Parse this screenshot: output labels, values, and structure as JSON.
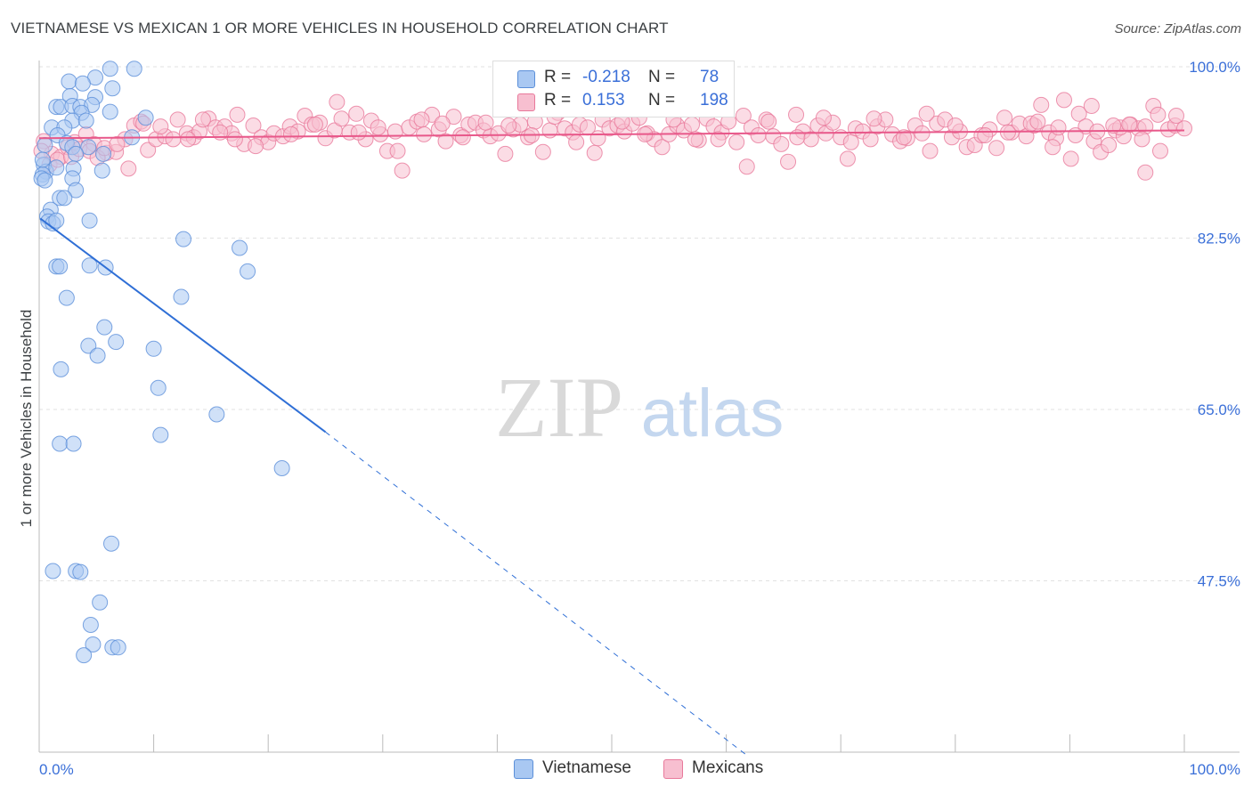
{
  "title": "VIETNAMESE VS MEXICAN 1 OR MORE VEHICLES IN HOUSEHOLD CORRELATION CHART",
  "source": "Source: ZipAtlas.com",
  "watermark": {
    "zip": "ZIP",
    "atlas": "atlas"
  },
  "legend": {
    "series": [
      {
        "name": "Vietnamese",
        "r_label": "R =",
        "r_value": "-0.218",
        "n_label": "N =",
        "n_value": "78",
        "fill": "#a9c8f2",
        "stroke": "#5b8fd9"
      },
      {
        "name": "Mexicans",
        "r_label": "R =",
        "r_value": "0.153",
        "n_label": "N =",
        "n_value": "198",
        "fill": "#f7bfd0",
        "stroke": "#e8799b"
      }
    ]
  },
  "chart_data": {
    "type": "scatter",
    "title": "VIETNAMESE VS MEXICAN 1 OR MORE VEHICLES IN HOUSEHOLD CORRELATION CHART",
    "xlabel": "",
    "ylabel": "1 or more Vehicles in Household",
    "xlim": [
      0,
      100
    ],
    "ylim": [
      30,
      100
    ],
    "x_tick_labels": [
      "0.0%",
      "100.0%"
    ],
    "y_ticks": [
      47.5,
      65.0,
      82.5,
      100.0
    ],
    "y_tick_labels": [
      "47.5%",
      "65.0%",
      "82.5%",
      "100.0%"
    ],
    "grid": true,
    "series": [
      {
        "name": "Vietnamese",
        "color_fill": "#a9c8f2",
        "color_stroke": "#5b8fd9",
        "trend": {
          "x0": 0.1,
          "y0": 84.5,
          "x1": 25.0,
          "y1": 62.7,
          "dash_to_x": 62.0,
          "dash_to_y": 29.5
        },
        "points": [
          [
            6.2,
            99.8
          ],
          [
            8.3,
            99.8
          ],
          [
            4.9,
            98.9
          ],
          [
            2.6,
            98.5
          ],
          [
            3.8,
            98.3
          ],
          [
            6.4,
            97.8
          ],
          [
            2.7,
            97.0
          ],
          [
            4.9,
            96.9
          ],
          [
            1.5,
            95.9
          ],
          [
            1.9,
            95.9
          ],
          [
            2.9,
            96.0
          ],
          [
            3.6,
            95.9
          ],
          [
            4.6,
            96.1
          ],
          [
            3.7,
            95.3
          ],
          [
            6.2,
            95.4
          ],
          [
            9.3,
            94.8
          ],
          [
            2.9,
            94.5
          ],
          [
            4.1,
            94.5
          ],
          [
            1.1,
            93.8
          ],
          [
            2.2,
            93.8
          ],
          [
            1.6,
            93.0
          ],
          [
            2.4,
            92.2
          ],
          [
            0.5,
            92.0
          ],
          [
            8.1,
            92.8
          ],
          [
            2.9,
            91.8
          ],
          [
            4.3,
            91.8
          ],
          [
            3.2,
            91.1
          ],
          [
            5.6,
            91.1
          ],
          [
            0.4,
            90.0
          ],
          [
            0.6,
            89.3
          ],
          [
            0.3,
            89.0
          ],
          [
            1.5,
            89.7
          ],
          [
            3.0,
            89.6
          ],
          [
            0.2,
            88.6
          ],
          [
            0.5,
            88.4
          ],
          [
            2.9,
            88.6
          ],
          [
            5.5,
            89.4
          ],
          [
            3.2,
            87.4
          ],
          [
            1.8,
            86.6
          ],
          [
            2.2,
            86.6
          ],
          [
            1.0,
            85.4
          ],
          [
            0.7,
            84.7
          ],
          [
            0.8,
            84.2
          ],
          [
            1.2,
            84.0
          ],
          [
            1.5,
            84.3
          ],
          [
            4.4,
            84.3
          ],
          [
            12.6,
            82.4
          ],
          [
            17.5,
            81.5
          ],
          [
            1.5,
            79.6
          ],
          [
            1.8,
            79.6
          ],
          [
            4.4,
            79.7
          ],
          [
            5.8,
            79.5
          ],
          [
            18.2,
            79.1
          ],
          [
            2.4,
            76.4
          ],
          [
            12.4,
            76.5
          ],
          [
            5.7,
            73.4
          ],
          [
            6.7,
            71.9
          ],
          [
            4.3,
            71.5
          ],
          [
            10.0,
            71.2
          ],
          [
            5.1,
            70.5
          ],
          [
            1.9,
            69.1
          ],
          [
            10.4,
            67.2
          ],
          [
            15.5,
            64.5
          ],
          [
            10.6,
            62.4
          ],
          [
            1.8,
            61.5
          ],
          [
            3.0,
            61.5
          ],
          [
            21.2,
            59.0
          ],
          [
            6.3,
            51.3
          ],
          [
            1.2,
            48.5
          ],
          [
            3.2,
            48.5
          ],
          [
            3.6,
            48.4
          ],
          [
            5.3,
            45.3
          ],
          [
            4.5,
            43.0
          ],
          [
            4.7,
            41.0
          ],
          [
            6.4,
            40.7
          ],
          [
            6.9,
            40.7
          ],
          [
            3.9,
            39.9
          ],
          [
            0.3,
            90.5
          ]
        ]
      },
      {
        "name": "Mexicans",
        "color_fill": "#f7bfd0",
        "color_stroke": "#e8799b",
        "trend": {
          "x0": 0.0,
          "y0": 92.7,
          "x1": 100.0,
          "y1": 93.5
        },
        "points": [
          [
            0.4,
            92.4
          ],
          [
            1.1,
            91.1
          ],
          [
            1.9,
            90.8
          ],
          [
            2.5,
            91.8
          ],
          [
            3.1,
            92.3
          ],
          [
            4.1,
            93.1
          ],
          [
            4.8,
            92.1
          ],
          [
            5.9,
            91.2
          ],
          [
            6.7,
            91.3
          ],
          [
            7.5,
            92.6
          ],
          [
            8.3,
            94.0
          ],
          [
            8.9,
            94.4
          ],
          [
            9.5,
            91.5
          ],
          [
            10.2,
            92.6
          ],
          [
            11.0,
            92.9
          ],
          [
            11.7,
            92.6
          ],
          [
            12.1,
            94.6
          ],
          [
            12.9,
            93.2
          ],
          [
            13.5,
            92.8
          ],
          [
            14.0,
            93.4
          ],
          [
            14.8,
            94.7
          ],
          [
            15.4,
            93.8
          ],
          [
            16.2,
            93.9
          ],
          [
            16.8,
            93.2
          ],
          [
            17.3,
            95.1
          ],
          [
            17.9,
            92.1
          ],
          [
            18.7,
            94.0
          ],
          [
            19.4,
            92.8
          ],
          [
            20.0,
            92.3
          ],
          [
            20.5,
            93.2
          ],
          [
            21.3,
            92.9
          ],
          [
            21.9,
            93.9
          ],
          [
            22.6,
            93.4
          ],
          [
            23.2,
            95.0
          ],
          [
            23.8,
            94.1
          ],
          [
            24.5,
            94.3
          ],
          [
            25.0,
            92.7
          ],
          [
            25.8,
            93.5
          ],
          [
            26.4,
            94.7
          ],
          [
            27.1,
            93.3
          ],
          [
            27.7,
            95.2
          ],
          [
            28.5,
            92.6
          ],
          [
            29.0,
            94.5
          ],
          [
            29.8,
            93.1
          ],
          [
            30.4,
            91.4
          ],
          [
            31.1,
            93.4
          ],
          [
            31.7,
            89.4
          ],
          [
            32.3,
            93.8
          ],
          [
            33.0,
            94.4
          ],
          [
            33.6,
            93.1
          ],
          [
            34.3,
            95.1
          ],
          [
            34.9,
            93.6
          ],
          [
            35.5,
            92.4
          ],
          [
            36.2,
            94.9
          ],
          [
            36.8,
            93.0
          ],
          [
            37.5,
            94.1
          ],
          [
            38.1,
            94.3
          ],
          [
            38.8,
            93.5
          ],
          [
            39.4,
            92.9
          ],
          [
            40.1,
            93.2
          ],
          [
            40.7,
            91.1
          ],
          [
            41.4,
            93.6
          ],
          [
            42.0,
            94.1
          ],
          [
            42.7,
            92.8
          ],
          [
            43.3,
            94.4
          ],
          [
            44.0,
            91.3
          ],
          [
            44.6,
            93.5
          ],
          [
            45.3,
            95.3
          ],
          [
            45.9,
            93.7
          ],
          [
            46.6,
            93.3
          ],
          [
            47.2,
            94.1
          ],
          [
            47.9,
            93.8
          ],
          [
            48.5,
            91.2
          ],
          [
            49.2,
            94.6
          ],
          [
            49.8,
            93.7
          ],
          [
            50.5,
            94.0
          ],
          [
            51.1,
            93.4
          ],
          [
            51.8,
            94.2
          ],
          [
            52.4,
            94.8
          ],
          [
            53.1,
            93.2
          ],
          [
            53.7,
            92.6
          ],
          [
            54.4,
            91.8
          ],
          [
            55.0,
            93.1
          ],
          [
            55.7,
            94.0
          ],
          [
            56.3,
            93.5
          ],
          [
            57.0,
            94.1
          ],
          [
            57.6,
            92.5
          ],
          [
            58.3,
            94.7
          ],
          [
            58.9,
            93.9
          ],
          [
            59.6,
            93.3
          ],
          [
            60.2,
            94.4
          ],
          [
            60.9,
            92.3
          ],
          [
            61.5,
            95.0
          ],
          [
            62.2,
            93.8
          ],
          [
            62.8,
            93.0
          ],
          [
            63.5,
            94.6
          ],
          [
            64.1,
            92.9
          ],
          [
            64.8,
            92.1
          ],
          [
            65.4,
            90.3
          ],
          [
            66.1,
            95.1
          ],
          [
            66.7,
            93.4
          ],
          [
            67.4,
            92.6
          ],
          [
            68.0,
            94.0
          ],
          [
            68.7,
            93.2
          ],
          [
            69.3,
            94.3
          ],
          [
            70.0,
            92.8
          ],
          [
            70.6,
            90.6
          ],
          [
            71.3,
            93.7
          ],
          [
            71.9,
            93.4
          ],
          [
            72.6,
            92.6
          ],
          [
            73.2,
            93.9
          ],
          [
            73.9,
            94.6
          ],
          [
            74.5,
            93.1
          ],
          [
            75.2,
            92.4
          ],
          [
            75.8,
            92.7
          ],
          [
            76.5,
            94.0
          ],
          [
            77.1,
            93.2
          ],
          [
            77.8,
            91.4
          ],
          [
            78.4,
            94.2
          ],
          [
            79.1,
            94.6
          ],
          [
            79.7,
            92.8
          ],
          [
            80.4,
            93.4
          ],
          [
            81.0,
            91.8
          ],
          [
            81.7,
            92.0
          ],
          [
            82.3,
            93.0
          ],
          [
            83.0,
            93.6
          ],
          [
            83.6,
            91.7
          ],
          [
            84.3,
            94.8
          ],
          [
            84.9,
            93.3
          ],
          [
            85.6,
            94.2
          ],
          [
            86.2,
            92.9
          ],
          [
            86.9,
            94.0
          ],
          [
            87.5,
            96.1
          ],
          [
            88.2,
            93.3
          ],
          [
            88.8,
            92.7
          ],
          [
            89.5,
            96.6
          ],
          [
            90.1,
            90.6
          ],
          [
            90.8,
            95.2
          ],
          [
            91.4,
            93.9
          ],
          [
            92.1,
            92.4
          ],
          [
            92.7,
            91.3
          ],
          [
            93.4,
            92.0
          ],
          [
            94.0,
            93.5
          ],
          [
            94.7,
            92.9
          ],
          [
            95.3,
            94.1
          ],
          [
            96.0,
            93.7
          ],
          [
            96.6,
            93.9
          ],
          [
            97.3,
            96.0
          ],
          [
            97.9,
            91.4
          ],
          [
            98.6,
            93.6
          ],
          [
            99.2,
            94.0
          ],
          [
            100.0,
            93.7
          ],
          [
            0.2,
            91.4
          ],
          [
            0.9,
            90.0
          ],
          [
            1.6,
            90.5
          ],
          [
            2.8,
            90.8
          ],
          [
            3.5,
            91.6
          ],
          [
            4.4,
            91.4
          ],
          [
            5.1,
            90.7
          ],
          [
            5.7,
            91.7
          ],
          [
            6.8,
            92.1
          ],
          [
            7.8,
            89.6
          ],
          [
            9.1,
            94.2
          ],
          [
            10.6,
            93.9
          ],
          [
            13.0,
            92.6
          ],
          [
            14.3,
            94.6
          ],
          [
            15.8,
            93.3
          ],
          [
            17.1,
            92.6
          ],
          [
            18.9,
            91.9
          ],
          [
            22.0,
            93.1
          ],
          [
            24.1,
            94.1
          ],
          [
            26.0,
            96.4
          ],
          [
            27.9,
            93.3
          ],
          [
            29.6,
            93.8
          ],
          [
            31.3,
            91.4
          ],
          [
            33.4,
            94.6
          ],
          [
            35.2,
            94.2
          ],
          [
            37.0,
            92.8
          ],
          [
            39.0,
            94.3
          ],
          [
            41.0,
            94.0
          ],
          [
            43.0,
            93.0
          ],
          [
            45.0,
            94.9
          ],
          [
            46.9,
            92.3
          ],
          [
            48.8,
            92.7
          ],
          [
            50.9,
            94.4
          ],
          [
            52.9,
            93.1
          ],
          [
            55.4,
            94.6
          ],
          [
            57.3,
            92.6
          ],
          [
            59.3,
            92.6
          ],
          [
            61.8,
            89.8
          ],
          [
            63.7,
            94.4
          ],
          [
            66.2,
            92.8
          ],
          [
            68.5,
            94.8
          ],
          [
            70.9,
            92.3
          ],
          [
            72.9,
            94.7
          ],
          [
            75.5,
            92.8
          ],
          [
            77.5,
            95.2
          ],
          [
            80.0,
            94.0
          ],
          [
            82.6,
            93.0
          ],
          [
            84.6,
            93.3
          ],
          [
            86.6,
            94.2
          ],
          [
            88.5,
            91.8
          ],
          [
            90.5,
            93.0
          ],
          [
            92.4,
            93.4
          ],
          [
            94.4,
            93.8
          ],
          [
            96.3,
            92.6
          ],
          [
            97.7,
            95.1
          ],
          [
            99.3,
            95.0
          ],
          [
            96.6,
            89.2
          ],
          [
            95.2,
            94.1
          ],
          [
            93.8,
            94.0
          ],
          [
            91.9,
            96.0
          ],
          [
            89.0,
            93.8
          ],
          [
            87.2,
            94.4
          ]
        ]
      }
    ]
  }
}
